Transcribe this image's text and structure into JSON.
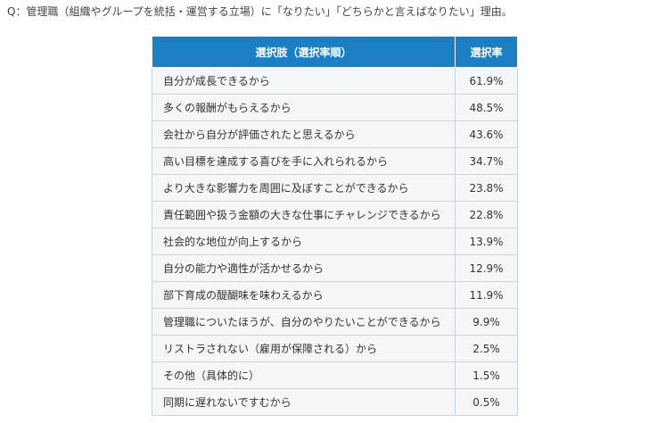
{
  "question": "Q：管理職（組織やグループを統括・運営する立場）に「なりたい」「どちらかと言えばなりたい」理由。",
  "chart_data": {
    "type": "table",
    "headers": [
      "選択肢（選択率順）",
      "選択率"
    ],
    "rows": [
      {
        "choice": "自分が成長できるから",
        "rate": "61.9%"
      },
      {
        "choice": "多くの報酬がもらえるから",
        "rate": "48.5%"
      },
      {
        "choice": "会社から自分が評価されたと思えるから",
        "rate": "43.6%"
      },
      {
        "choice": "高い目標を達成する喜びを手に入れられるから",
        "rate": "34.7%"
      },
      {
        "choice": "より大きな影響力を周囲に及ぼすことができるから",
        "rate": "23.8%"
      },
      {
        "choice": "責任範囲や扱う金額の大きな仕事にチャレンジできるから",
        "rate": "22.8%"
      },
      {
        "choice": "社会的な地位が向上するから",
        "rate": "13.9%"
      },
      {
        "choice": "自分の能力や適性が活かせるから",
        "rate": "12.9%"
      },
      {
        "choice": "部下育成の醍醐味を味わえるから",
        "rate": "11.9%"
      },
      {
        "choice": "管理職についたほうが、自分のやりたいことができるから",
        "rate": "9.9%"
      },
      {
        "choice": "リストラされない（雇用が保障される）から",
        "rate": "2.5%"
      },
      {
        "choice": "その他（具体的に）",
        "rate": "1.5%"
      },
      {
        "choice": "同期に遅れないですむから",
        "rate": "0.5%"
      }
    ]
  },
  "colors": {
    "header_bg": "#1c7fc4",
    "header_text": "#ffffff",
    "cell_bg": "#f4f6f8",
    "border": "#c9d3dc"
  }
}
